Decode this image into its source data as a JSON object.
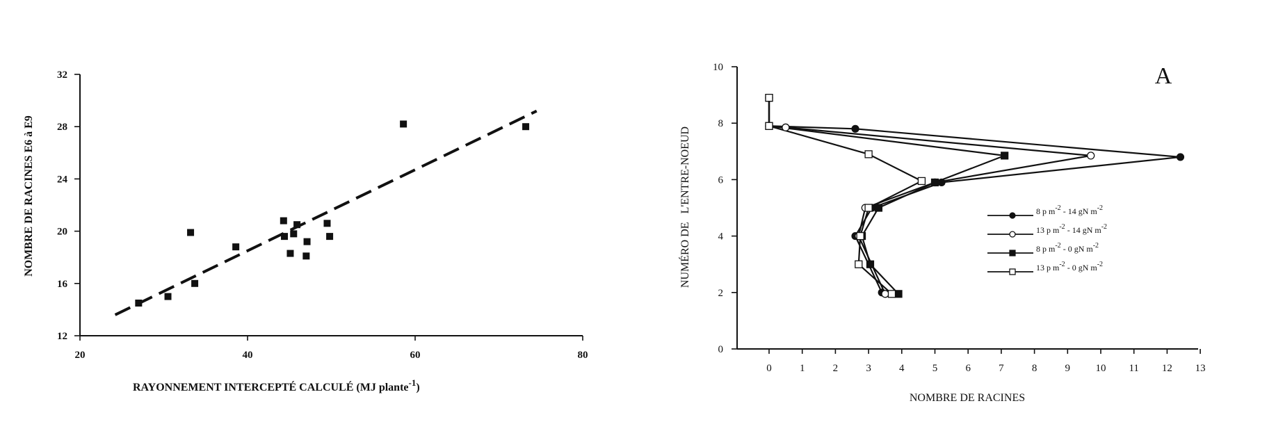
{
  "chart_data": [
    {
      "type": "scatter",
      "title": "",
      "xlabel": "RAYONNEMENT INTERCEPTÉ CALCULÉ (MJ plante",
      "xlabel_sup": "-1",
      "xlabel_close": ")",
      "ylabel": "NOMBRE DE RACINES E6 à E9",
      "xlim": [
        20,
        80
      ],
      "ylim": [
        12,
        32
      ],
      "xticks": [
        20,
        40,
        60,
        80
      ],
      "yticks": [
        12,
        16,
        20,
        24,
        28,
        32
      ],
      "grid": false,
      "points": [
        {
          "x": 27,
          "y": 14.5
        },
        {
          "x": 30.5,
          "y": 15
        },
        {
          "x": 33.2,
          "y": 19.9
        },
        {
          "x": 33.7,
          "y": 16
        },
        {
          "x": 38.6,
          "y": 18.8
        },
        {
          "x": 44.3,
          "y": 20.8
        },
        {
          "x": 44.4,
          "y": 19.6
        },
        {
          "x": 45.1,
          "y": 18.3
        },
        {
          "x": 45.5,
          "y": 19.8
        },
        {
          "x": 45.9,
          "y": 20.5
        },
        {
          "x": 47,
          "y": 18.1
        },
        {
          "x": 47.1,
          "y": 19.2
        },
        {
          "x": 49.5,
          "y": 20.6
        },
        {
          "x": 49.8,
          "y": 19.6
        },
        {
          "x": 58.6,
          "y": 28.2
        },
        {
          "x": 73.2,
          "y": 28
        }
      ],
      "trendline": {
        "style": "dashed",
        "x": [
          24.2,
          74.5
        ],
        "y": [
          13.6,
          29.2
        ]
      }
    },
    {
      "type": "line",
      "title": "",
      "panel_label": "A",
      "xlabel": "NOMBRE DE RACINES",
      "ylabel": "NUMÉRO DE   L'ENTRE-NOEUD",
      "xlim": [
        0,
        13
      ],
      "ylim": [
        0,
        10
      ],
      "xticks": [
        0,
        1,
        2,
        3,
        4,
        5,
        6,
        7,
        8,
        9,
        10,
        11,
        12,
        13
      ],
      "yticks": [
        0,
        2,
        4,
        6,
        8,
        10
      ],
      "grid": false,
      "legend_position": "center-right",
      "series": [
        {
          "name": "8 p m-2 - 14 gN m-2",
          "density": "8 p m",
          "density_sup": "-2",
          "nitrogen": "14 gN m",
          "nitrogen_sup": "-2",
          "marker": "filled-circle",
          "points": [
            [
              3.4,
              2
            ],
            [
              2.6,
              4
            ],
            [
              3.1,
              5
            ],
            [
              5.2,
              5.9
            ],
            [
              12.4,
              6.8
            ],
            [
              2.6,
              7.8
            ],
            [
              0,
              7.9
            ],
            [
              0,
              8.9
            ]
          ]
        },
        {
          "name": "13 p m-2 - 14 gN m-2",
          "density": "13 p m",
          "density_sup": "-2",
          "nitrogen": "14 gN m",
          "nitrogen_sup": "-2",
          "marker": "open-circle",
          "points": [
            [
              3.5,
              1.95
            ],
            [
              2.7,
              4
            ],
            [
              2.9,
              5
            ],
            [
              5,
              5.9
            ],
            [
              9.7,
              6.85
            ],
            [
              0.5,
              7.85
            ],
            [
              0,
              7.9
            ],
            [
              0,
              8.9
            ]
          ]
        },
        {
          "name": "8 p m-2 - 0 gN m-2",
          "density": "8 p m",
          "density_sup": "-2",
          "nitrogen": "0 gN m",
          "nitrogen_sup": "-2",
          "marker": "filled-square",
          "points": [
            [
              3.9,
              1.95
            ],
            [
              3.05,
              3
            ],
            [
              2.8,
              4
            ],
            [
              3.3,
              5
            ],
            [
              5,
              5.9
            ],
            [
              7.1,
              6.85
            ],
            [
              0,
              7.9
            ],
            [
              0,
              8.9
            ]
          ]
        },
        {
          "name": "13 p m-2 - 0 gN m-2",
          "density": "13 p m",
          "density_sup": "-2",
          "nitrogen": "0 gN m",
          "nitrogen_sup": "-2",
          "marker": "open-square",
          "points": [
            [
              3.7,
              1.95
            ],
            [
              2.7,
              3
            ],
            [
              2.75,
              4
            ],
            [
              3,
              5
            ],
            [
              4.6,
              5.95
            ],
            [
              3,
              6.9
            ],
            [
              0,
              7.9
            ],
            [
              0,
              8.9
            ]
          ]
        }
      ]
    }
  ]
}
